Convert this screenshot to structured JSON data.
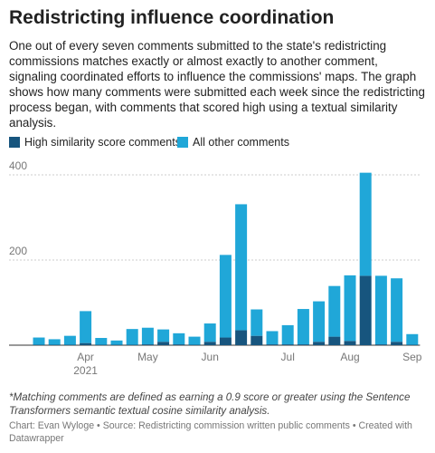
{
  "chart_data": {
    "type": "stacked_bar",
    "title": "Redistricting influence coordination",
    "subtitle": "One out of every seven comments submitted to the state's redistricting commissions matches exactly or almost exactly to another comment, signaling coordinated efforts to influence the commissions' maps. The graph shows how many comments were submitted each week since the redistricting process began, with comments that scored high using a textual similarity analysis.",
    "categories": [
      null,
      null,
      null,
      "Apr 2021",
      null,
      null,
      null,
      "May",
      null,
      null,
      null,
      "Jun",
      null,
      null,
      null,
      null,
      "Jul",
      null,
      null,
      null,
      "Aug",
      null,
      null,
      null,
      "Sep"
    ],
    "series": [
      {
        "name": "High similarity score comments",
        "color": "#17557e",
        "values": [
          1,
          1,
          1,
          5,
          1,
          1,
          1,
          2,
          8,
          2,
          1,
          8,
          18,
          35,
          22,
          2,
          2,
          2,
          8,
          20,
          10,
          163,
          2,
          8,
          1
        ]
      },
      {
        "name": "All other comments",
        "color": "#20a7d8",
        "values": [
          17,
          13,
          21,
          75,
          16,
          10,
          37,
          39,
          29,
          26,
          19,
          43,
          194,
          296,
          62,
          31,
          45,
          83,
          95,
          119,
          154,
          242,
          161,
          149,
          25
        ]
      }
    ],
    "ylim": [
      0,
      420
    ],
    "yticks": [
      200,
      400
    ],
    "grid": true,
    "note": "*Matching comments are defined as earning a 0.9 score or greater using the Sentence Transformers semantic textual cosine similarity analysis.",
    "credit": "Chart: Evan Wyloge • Source: Redistricting commission written public comments • Created with Datawrapper"
  }
}
